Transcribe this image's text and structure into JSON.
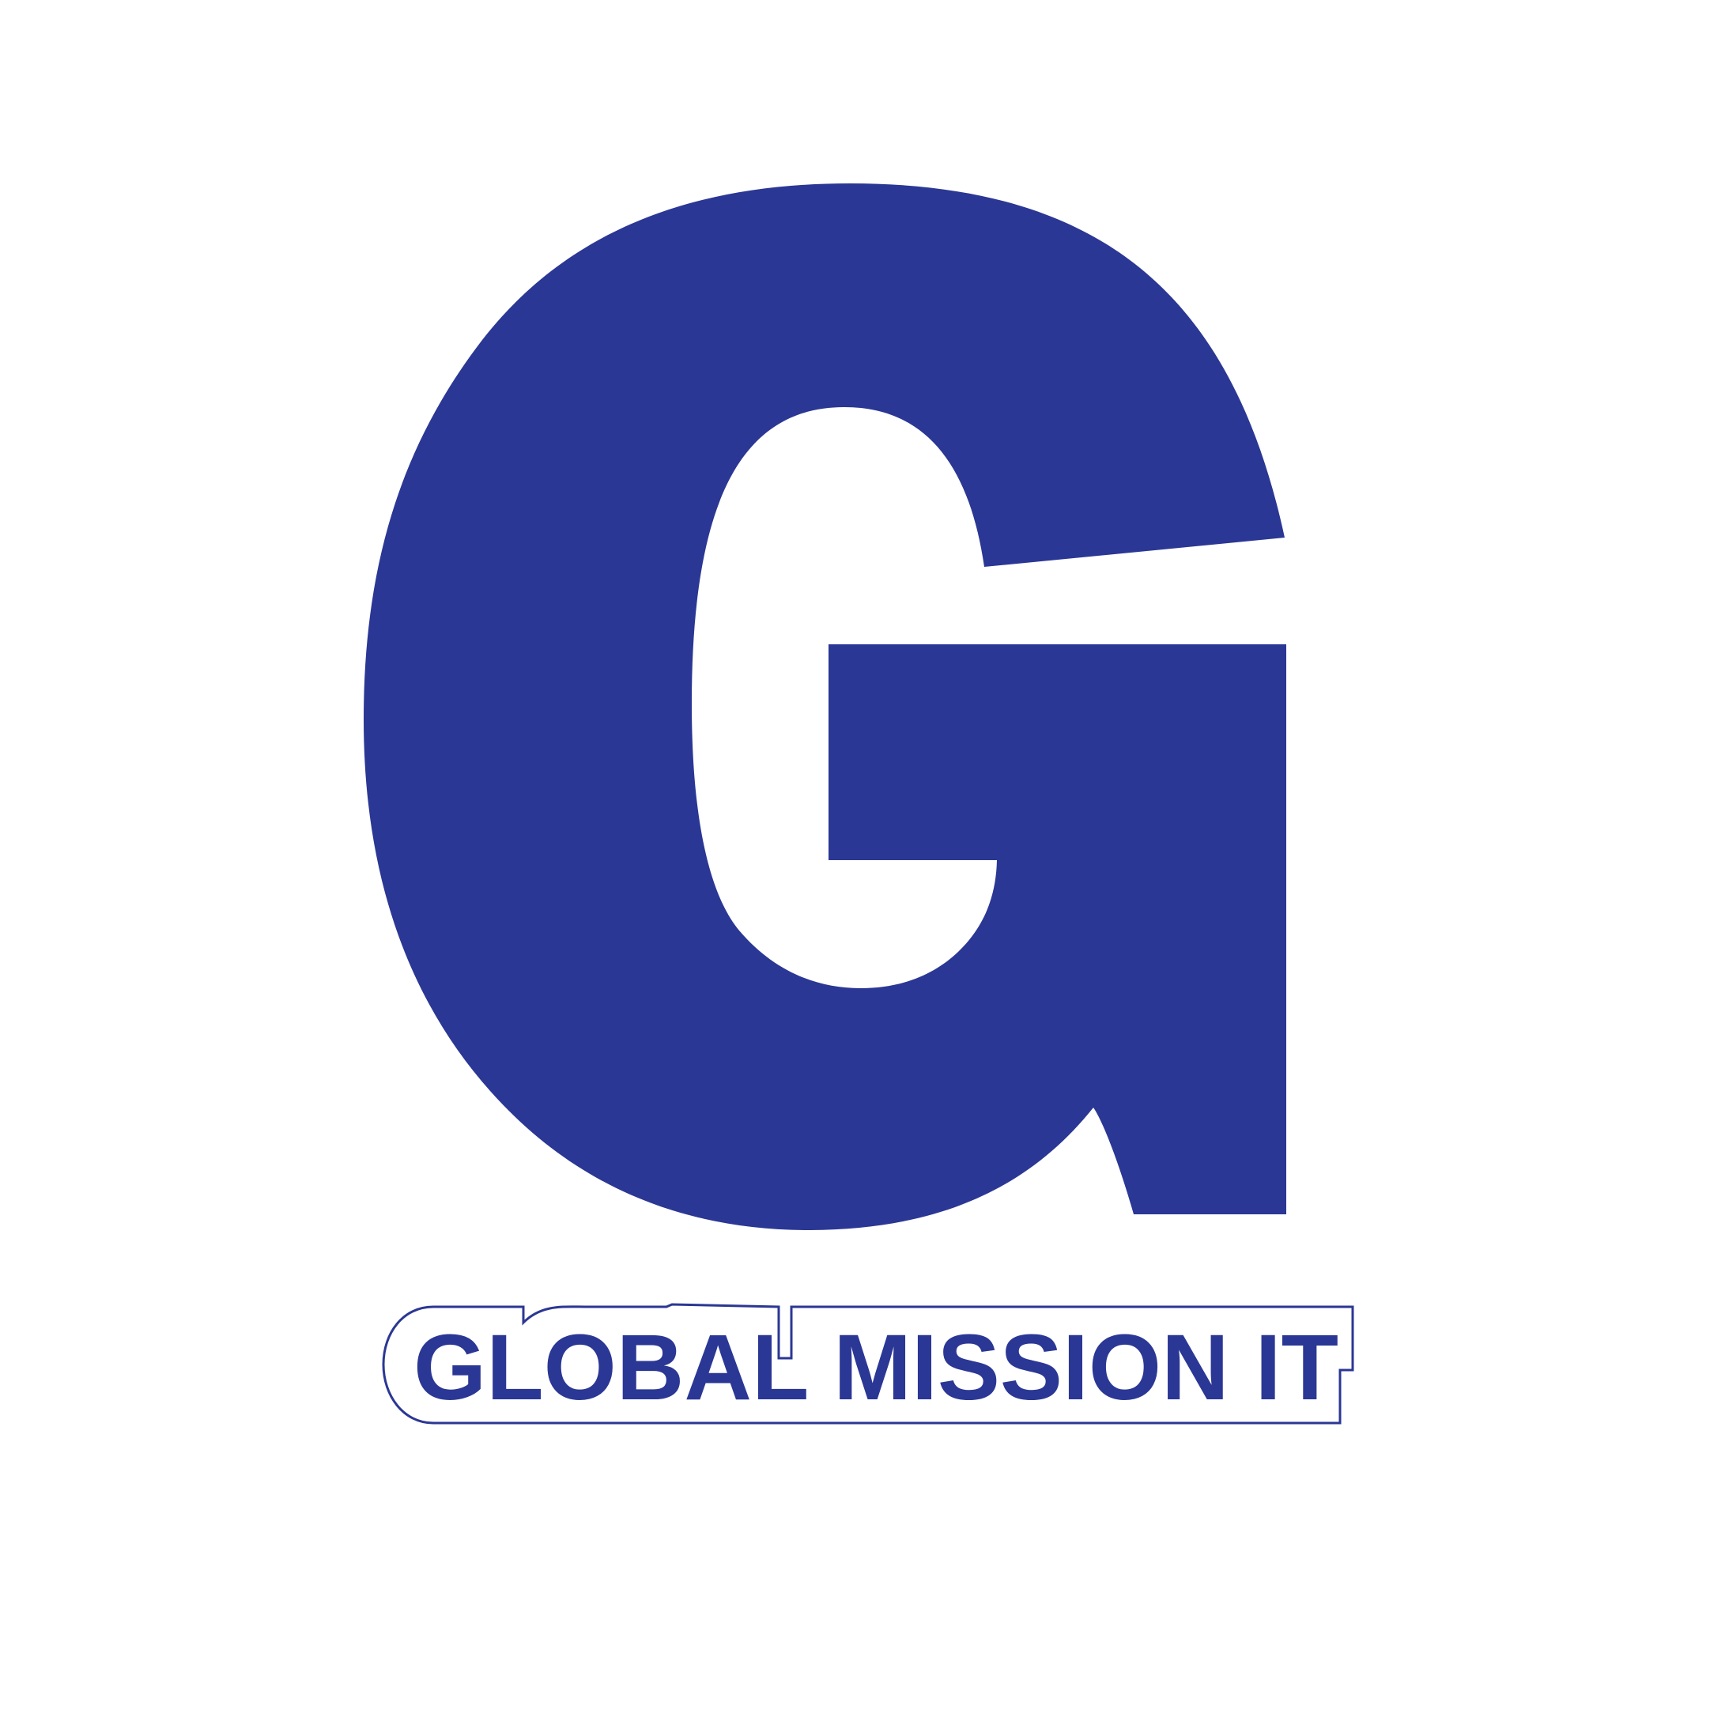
{
  "logo": {
    "brand_color": "#2b3794",
    "background_color": "#ffffff",
    "monogram": "G",
    "wordmark": "GLOBAL MISSION IT"
  }
}
